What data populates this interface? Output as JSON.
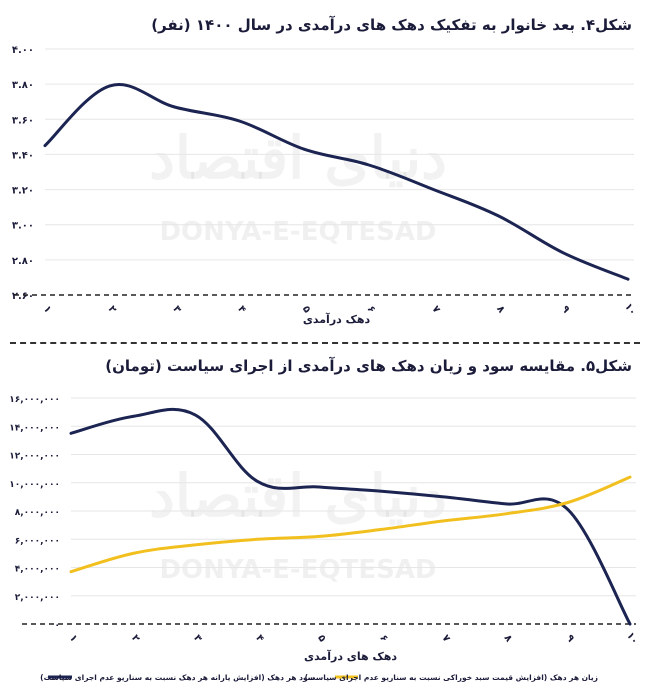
{
  "chart_data": [
    {
      "type": "line",
      "title": "شکل۴. بعد خانوار به تفکیک دهک های درآمدی در سال ۱۴۰۰ (نفر)",
      "xlabel": "دهک درآمدی",
      "ylabel": "",
      "categories": [
        "۱",
        "۲",
        "۳",
        "۴",
        "۵",
        "۶",
        "۷",
        "۸",
        "۹",
        "۱۰"
      ],
      "x": [
        1,
        2,
        3,
        4,
        5,
        6,
        7,
        8,
        9,
        10
      ],
      "yticks": [
        "۲.۶۰",
        "۲.۸۰",
        "۳.۰۰",
        "۳.۲۰",
        "۳.۴۰",
        "۳.۶۰",
        "۳.۸۰",
        "۴.۰۰"
      ],
      "ylim": [
        2.6,
        4.0
      ],
      "series": [
        {
          "name": "",
          "color": "#1c2452",
          "values": [
            3.45,
            3.79,
            3.67,
            3.59,
            3.43,
            3.34,
            3.2,
            3.05,
            2.84,
            2.69
          ]
        }
      ]
    },
    {
      "type": "line",
      "title": "شکل۵. مقایسه سود و زیان دهک های درآمدی از اجرای سیاست (تومان)",
      "xlabel": "دهک های درآمدی",
      "ylabel": "",
      "categories": [
        "۱",
        "۲",
        "۳",
        "۴",
        "۵",
        "۶",
        "۷",
        "۸",
        "۹",
        "۱۰"
      ],
      "x": [
        1,
        2,
        3,
        4,
        5,
        6,
        7,
        8,
        9,
        10
      ],
      "yticks": [
        "۰",
        "۲,۰۰۰,۰۰۰",
        "۴,۰۰۰,۰۰۰",
        "۶,۰۰۰,۰۰۰",
        "۸,۰۰۰,۰۰۰",
        "۱۰,۰۰۰,۰۰۰",
        "۱۲,۰۰۰,۰۰۰",
        "۱۴,۰۰۰,۰۰۰",
        "۱۶,۰۰۰,۰۰۰"
      ],
      "ylim": [
        0,
        16000000
      ],
      "legend_position": "bottom",
      "series": [
        {
          "name": "سود هر دهک (افزایش یارانه هر دهک نسبت به سناریو عدم اجرای سیاست)",
          "color": "#1c2452",
          "values": [
            13500000,
            14700000,
            14800000,
            10100000,
            9700000,
            9400000,
            9000000,
            8500000,
            8100000,
            0
          ]
        },
        {
          "name": "زیان هر دهک (افزایش قیمت سبد خوراکی نسبت به سناریو عدم اجرای سیاست)",
          "color": "#f2c01e",
          "values": [
            3700000,
            5000000,
            5600000,
            6000000,
            6200000,
            6700000,
            7300000,
            7800000,
            8600000,
            10400000
          ]
        }
      ]
    }
  ],
  "watermark": {
    "text_en": "DONYA-E-EQTESAD",
    "text_fa": "دنیای اقتصاد"
  }
}
